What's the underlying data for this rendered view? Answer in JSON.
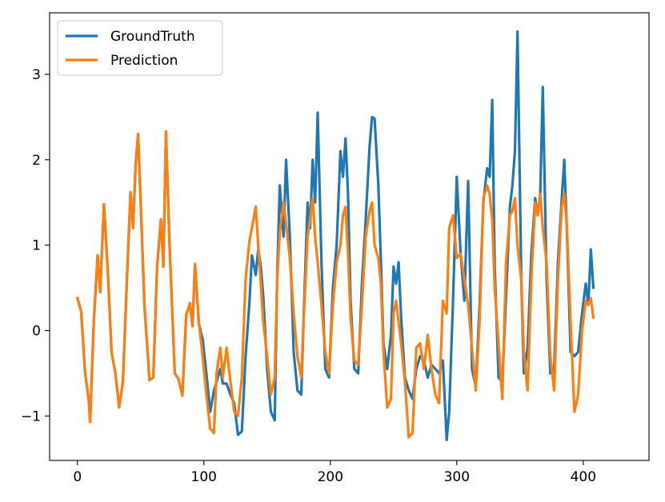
{
  "chart_data": {
    "type": "line",
    "title": "",
    "xlabel": "",
    "ylabel": "",
    "xlim": [
      -22,
      452
    ],
    "ylim": [
      -1.52,
      3.72
    ],
    "xticks": [
      0,
      100,
      200,
      300,
      400
    ],
    "yticks": [
      -1,
      0,
      1,
      2,
      3
    ],
    "xtick_labels": [
      "0",
      "100",
      "200",
      "300",
      "400"
    ],
    "ytick_labels": [
      "−1",
      "0",
      "1",
      "2",
      "3"
    ],
    "grid": false,
    "legend_position": "top-left",
    "series": [
      {
        "name": "GroundTruth",
        "color": "#1f77b4",
        "points": [
          [
            0,
            0.38
          ],
          [
            3,
            0.22
          ],
          [
            6,
            -0.48
          ],
          [
            9,
            -0.82
          ],
          [
            10,
            -1.07
          ],
          [
            13,
            0.12
          ],
          [
            16,
            0.88
          ],
          [
            18,
            0.45
          ],
          [
            21,
            1.48
          ],
          [
            24,
            0.7
          ],
          [
            27,
            -0.25
          ],
          [
            30,
            -0.5
          ],
          [
            33,
            -0.9
          ],
          [
            36,
            -0.6
          ],
          [
            39,
            0.55
          ],
          [
            42,
            1.62
          ],
          [
            44,
            1.2
          ],
          [
            46,
            1.95
          ],
          [
            48,
            2.3
          ],
          [
            50,
            1.5
          ],
          [
            53,
            0.3
          ],
          [
            57,
            -0.58
          ],
          [
            60,
            -0.55
          ],
          [
            63,
            0.75
          ],
          [
            66,
            1.3
          ],
          [
            68,
            0.75
          ],
          [
            70,
            2.33
          ],
          [
            73,
            0.95
          ],
          [
            77,
            -0.5
          ],
          [
            80,
            -0.57
          ],
          [
            83,
            -0.76
          ],
          [
            86,
            0.18
          ],
          [
            89,
            0.32
          ],
          [
            91,
            0.05
          ],
          [
            93,
            0.78
          ],
          [
            96,
            0.08
          ],
          [
            99,
            -0.1
          ],
          [
            102,
            -0.5
          ],
          [
            105,
            -0.95
          ],
          [
            108,
            -0.7
          ],
          [
            110,
            -0.6
          ],
          [
            113,
            -0.45
          ],
          [
            115,
            -0.62
          ],
          [
            118,
            -0.62
          ],
          [
            121,
            -0.75
          ],
          [
            124,
            -0.85
          ],
          [
            127,
            -1.22
          ],
          [
            130,
            -1.18
          ],
          [
            133,
            -0.3
          ],
          [
            136,
            0.33
          ],
          [
            138,
            0.88
          ],
          [
            141,
            0.65
          ],
          [
            143,
            0.95
          ],
          [
            145,
            0.75
          ],
          [
            147,
            0.4
          ],
          [
            150,
            -0.45
          ],
          [
            153,
            -0.95
          ],
          [
            156,
            -1.05
          ],
          [
            158,
            0.65
          ],
          [
            160,
            1.7
          ],
          [
            163,
            1.1
          ],
          [
            165,
            2.0
          ],
          [
            168,
            1.1
          ],
          [
            171,
            -0.25
          ],
          [
            174,
            -0.7
          ],
          [
            177,
            -0.75
          ],
          [
            179,
            0.2
          ],
          [
            182,
            1.5
          ],
          [
            184,
            1.2
          ],
          [
            186,
            2.0
          ],
          [
            188,
            1.5
          ],
          [
            190,
            2.55
          ],
          [
            193,
            0.8
          ],
          [
            196,
            -0.45
          ],
          [
            199,
            -0.55
          ],
          [
            202,
            0.5
          ],
          [
            205,
            1.0
          ],
          [
            208,
            2.1
          ],
          [
            210,
            1.8
          ],
          [
            212,
            2.25
          ],
          [
            214,
            1.6
          ],
          [
            216,
            0.35
          ],
          [
            219,
            -0.45
          ],
          [
            222,
            -0.5
          ],
          [
            225,
            0.55
          ],
          [
            228,
            1.3
          ],
          [
            231,
            2.15
          ],
          [
            233,
            2.5
          ],
          [
            235,
            2.48
          ],
          [
            238,
            1.7
          ],
          [
            240,
            0.8
          ],
          [
            242,
            -0.15
          ],
          [
            245,
            -0.45
          ],
          [
            248,
            -0.05
          ],
          [
            250,
            0.75
          ],
          [
            252,
            0.55
          ],
          [
            254,
            0.8
          ],
          [
            256,
            0.15
          ],
          [
            259,
            -0.55
          ],
          [
            262,
            -0.7
          ],
          [
            265,
            -0.8
          ],
          [
            268,
            -0.45
          ],
          [
            271,
            -0.3
          ],
          [
            274,
            -0.35
          ],
          [
            277,
            -0.55
          ],
          [
            280,
            -0.4
          ],
          [
            283,
            -0.45
          ],
          [
            286,
            -0.5
          ],
          [
            289,
            -0.35
          ],
          [
            292,
            -1.28
          ],
          [
            294,
            -0.95
          ],
          [
            297,
            0.35
          ],
          [
            300,
            1.8
          ],
          [
            303,
            0.9
          ],
          [
            306,
            0.35
          ],
          [
            309,
            1.75
          ],
          [
            312,
            -0.45
          ],
          [
            315,
            -0.65
          ],
          [
            318,
            0.3
          ],
          [
            321,
            1.5
          ],
          [
            324,
            1.9
          ],
          [
            326,
            1.8
          ],
          [
            328,
            2.7
          ],
          [
            330,
            0.75
          ],
          [
            333,
            -0.55
          ],
          [
            336,
            -0.6
          ],
          [
            339,
            0.4
          ],
          [
            342,
            1.45
          ],
          [
            344,
            1.7
          ],
          [
            346,
            2.1
          ],
          [
            348,
            3.5
          ],
          [
            351,
            0.6
          ],
          [
            353,
            -0.5
          ],
          [
            356,
            -0.2
          ],
          [
            359,
            0.9
          ],
          [
            362,
            1.55
          ],
          [
            364,
            1.35
          ],
          [
            366,
            1.6
          ],
          [
            368,
            2.85
          ],
          [
            371,
            0.6
          ],
          [
            374,
            -0.5
          ],
          [
            377,
            -0.45
          ],
          [
            380,
            0.8
          ],
          [
            383,
            1.55
          ],
          [
            385,
            2.0
          ],
          [
            387,
            1.2
          ],
          [
            390,
            -0.25
          ],
          [
            393,
            -0.3
          ],
          [
            396,
            -0.25
          ],
          [
            399,
            0.2
          ],
          [
            402,
            0.55
          ],
          [
            404,
            0.3
          ],
          [
            406,
            0.95
          ],
          [
            408,
            0.5
          ]
        ]
      },
      {
        "name": "Prediction",
        "color": "#ff7f0e",
        "points": [
          [
            0,
            0.38
          ],
          [
            3,
            0.22
          ],
          [
            6,
            -0.48
          ],
          [
            9,
            -0.82
          ],
          [
            10,
            -1.07
          ],
          [
            13,
            0.12
          ],
          [
            16,
            0.88
          ],
          [
            18,
            0.45
          ],
          [
            21,
            1.48
          ],
          [
            24,
            0.7
          ],
          [
            27,
            -0.25
          ],
          [
            30,
            -0.5
          ],
          [
            33,
            -0.9
          ],
          [
            36,
            -0.6
          ],
          [
            39,
            0.55
          ],
          [
            42,
            1.62
          ],
          [
            44,
            1.2
          ],
          [
            46,
            1.95
          ],
          [
            48,
            2.3
          ],
          [
            50,
            1.5
          ],
          [
            53,
            0.3
          ],
          [
            57,
            -0.58
          ],
          [
            60,
            -0.55
          ],
          [
            63,
            0.75
          ],
          [
            66,
            1.3
          ],
          [
            68,
            0.75
          ],
          [
            70,
            2.33
          ],
          [
            73,
            0.95
          ],
          [
            77,
            -0.5
          ],
          [
            80,
            -0.57
          ],
          [
            83,
            -0.76
          ],
          [
            86,
            0.18
          ],
          [
            89,
            0.32
          ],
          [
            91,
            0.05
          ],
          [
            93,
            0.78
          ],
          [
            96,
            0.1
          ],
          [
            99,
            -0.3
          ],
          [
            102,
            -0.75
          ],
          [
            105,
            -1.15
          ],
          [
            108,
            -1.2
          ],
          [
            110,
            -0.5
          ],
          [
            113,
            -0.2
          ],
          [
            115,
            -0.55
          ],
          [
            118,
            -0.2
          ],
          [
            121,
            -0.6
          ],
          [
            124,
            -0.95
          ],
          [
            127,
            -1.0
          ],
          [
            130,
            -0.55
          ],
          [
            133,
            0.6
          ],
          [
            136,
            1.05
          ],
          [
            138,
            1.2
          ],
          [
            141,
            1.45
          ],
          [
            143,
            1.0
          ],
          [
            145,
            0.55
          ],
          [
            147,
            0.1
          ],
          [
            150,
            -0.3
          ],
          [
            153,
            -0.75
          ],
          [
            156,
            -0.55
          ],
          [
            158,
            0.6
          ],
          [
            160,
            1.15
          ],
          [
            163,
            1.5
          ],
          [
            165,
            1.25
          ],
          [
            168,
            0.85
          ],
          [
            171,
            0.2
          ],
          [
            174,
            -0.3
          ],
          [
            177,
            -0.55
          ],
          [
            179,
            0.15
          ],
          [
            182,
            1.1
          ],
          [
            184,
            1.3
          ],
          [
            186,
            1.55
          ],
          [
            188,
            1.1
          ],
          [
            190,
            0.8
          ],
          [
            193,
            0.3
          ],
          [
            196,
            -0.25
          ],
          [
            199,
            -0.5
          ],
          [
            202,
            0.3
          ],
          [
            205,
            0.8
          ],
          [
            208,
            1.0
          ],
          [
            210,
            1.35
          ],
          [
            212,
            1.45
          ],
          [
            214,
            0.9
          ],
          [
            216,
            0.15
          ],
          [
            219,
            -0.35
          ],
          [
            222,
            -0.4
          ],
          [
            225,
            0.3
          ],
          [
            228,
            1.1
          ],
          [
            231,
            1.4
          ],
          [
            233,
            1.5
          ],
          [
            235,
            1.0
          ],
          [
            238,
            0.85
          ],
          [
            240,
            0.55
          ],
          [
            242,
            -0.25
          ],
          [
            245,
            -0.9
          ],
          [
            248,
            -0.8
          ],
          [
            250,
            0.2
          ],
          [
            252,
            0.35
          ],
          [
            254,
            0.1
          ],
          [
            256,
            -0.15
          ],
          [
            259,
            -0.6
          ],
          [
            262,
            -1.25
          ],
          [
            265,
            -1.2
          ],
          [
            268,
            -0.2
          ],
          [
            271,
            -0.15
          ],
          [
            274,
            -0.45
          ],
          [
            277,
            -0.05
          ],
          [
            280,
            -0.45
          ],
          [
            283,
            -0.75
          ],
          [
            286,
            -0.85
          ],
          [
            289,
            0.35
          ],
          [
            292,
            0.2
          ],
          [
            294,
            1.2
          ],
          [
            297,
            1.35
          ],
          [
            300,
            0.85
          ],
          [
            303,
            0.9
          ],
          [
            306,
            0.6
          ],
          [
            309,
            0.3
          ],
          [
            312,
            -0.2
          ],
          [
            315,
            -0.7
          ],
          [
            318,
            0.1
          ],
          [
            321,
            1.55
          ],
          [
            324,
            1.7
          ],
          [
            326,
            1.6
          ],
          [
            328,
            1.3
          ],
          [
            330,
            0.5
          ],
          [
            333,
            -0.15
          ],
          [
            336,
            -0.8
          ],
          [
            339,
            0.8
          ],
          [
            342,
            1.35
          ],
          [
            344,
            1.4
          ],
          [
            346,
            1.55
          ],
          [
            348,
            1.0
          ],
          [
            351,
            0.6
          ],
          [
            353,
            -0.25
          ],
          [
            356,
            -0.7
          ],
          [
            359,
            0.6
          ],
          [
            362,
            1.5
          ],
          [
            364,
            1.35
          ],
          [
            366,
            1.6
          ],
          [
            368,
            1.2
          ],
          [
            371,
            0.8
          ],
          [
            374,
            -0.3
          ],
          [
            377,
            -0.7
          ],
          [
            380,
            0.6
          ],
          [
            383,
            1.45
          ],
          [
            385,
            1.6
          ],
          [
            387,
            1.25
          ],
          [
            390,
            0.1
          ],
          [
            393,
            -0.95
          ],
          [
            396,
            -0.75
          ],
          [
            399,
            0.0
          ],
          [
            402,
            0.35
          ],
          [
            404,
            0.3
          ],
          [
            406,
            0.38
          ],
          [
            408,
            0.15
          ]
        ]
      }
    ]
  }
}
